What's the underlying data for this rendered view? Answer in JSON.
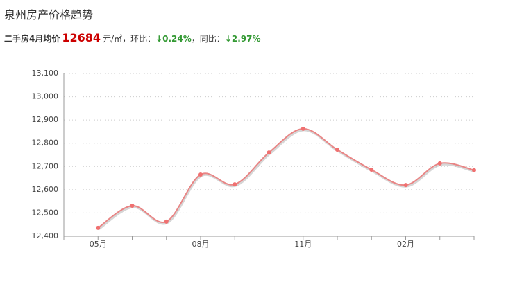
{
  "header": {
    "title": "泉州房产价格趋势"
  },
  "summary": {
    "label": "二手房4月均价",
    "price": 12684,
    "unit": "元/㎡",
    "mom_label": "，环比：",
    "mom": "↓0.24%",
    "yoy_label": "，同比：",
    "yoy": "↓2.97%"
  },
  "chart_data": {
    "type": "line",
    "categories": [
      "05月",
      null,
      null,
      "08月",
      null,
      null,
      "11月",
      null,
      null,
      "02月",
      null,
      null
    ],
    "values": [
      12436,
      12531,
      12463,
      12665,
      12623,
      12760,
      12862,
      12772,
      12686,
      12620,
      12713,
      12684
    ],
    "color": "#e98585",
    "ylim": [
      12400,
      13100
    ],
    "yticks": [
      {
        "value": 12400,
        "label": "12,400"
      },
      {
        "value": 12500,
        "label": "12,500"
      },
      {
        "value": 12600,
        "label": "12,600"
      },
      {
        "value": 12700,
        "label": "12,700"
      },
      {
        "value": 12800,
        "label": "12,800"
      },
      {
        "value": 12900,
        "label": "12,900"
      },
      {
        "value": 13000,
        "label": "13,000"
      },
      {
        "value": 13100,
        "label": "13,100"
      }
    ],
    "grid": true
  }
}
